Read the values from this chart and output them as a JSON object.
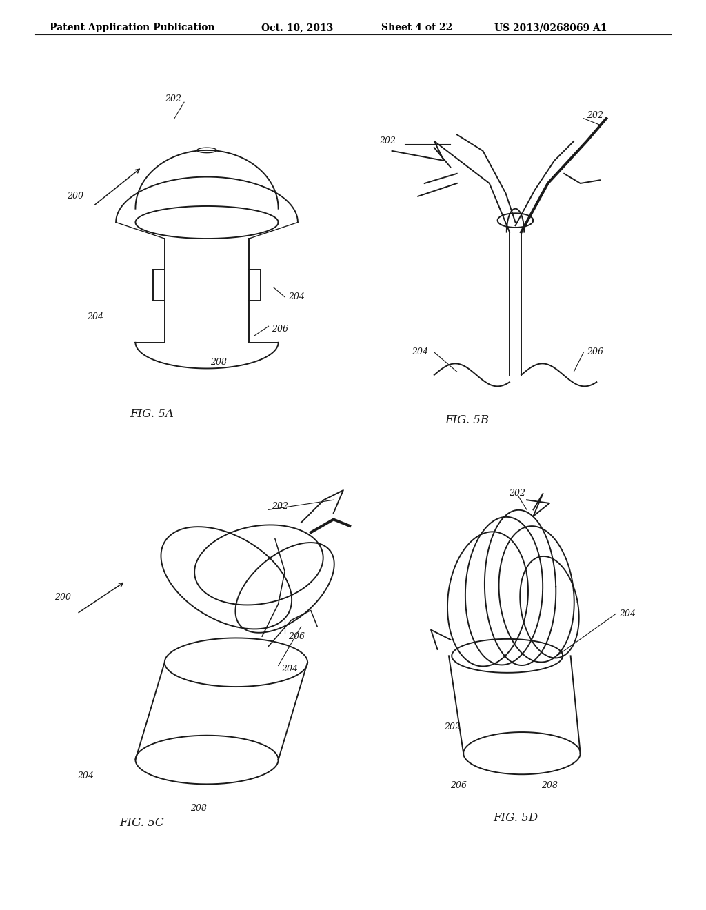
{
  "background_color": "#ffffff",
  "header_text": "Patent Application Publication",
  "header_date": "Oct. 10, 2013",
  "header_sheet": "Sheet 4 of 22",
  "header_patent": "US 2013/0268069 A1",
  "fig_labels": [
    "FIG. 5A",
    "FIG. 5B",
    "FIG. 5C",
    "FIG. 5D"
  ],
  "line_color": "#1a1a1a",
  "line_width": 1.4,
  "label_fontsize": 9,
  "header_fontsize": 10,
  "fig_label_fontsize": 12
}
